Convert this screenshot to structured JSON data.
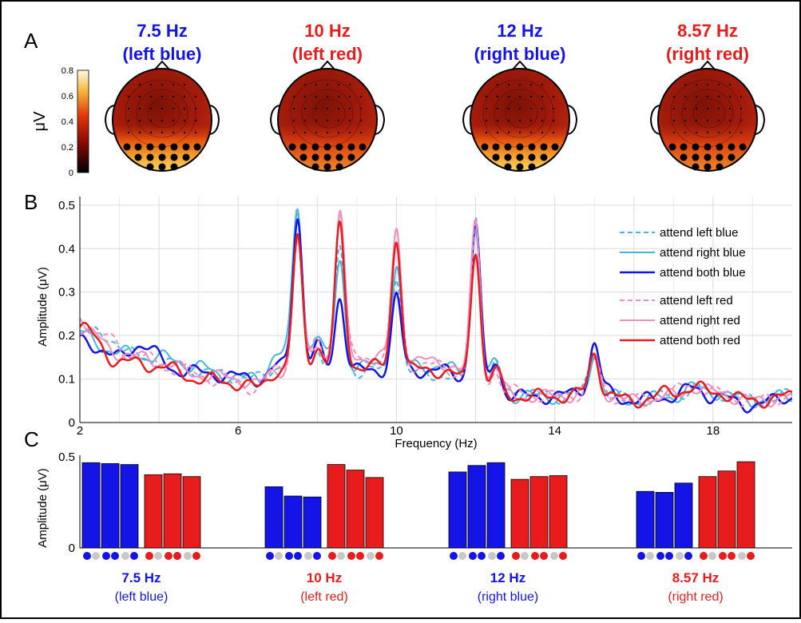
{
  "panel_letters": {
    "a": "A",
    "b": "B",
    "c": "C"
  },
  "colors": {
    "blue": "#1414e6",
    "red": "#e81c1c",
    "light_blue": "#45b5e0",
    "pink": "#f28cbf",
    "inactive_dot": "#c8c8c8",
    "frame": "#000000"
  },
  "panel_a": {
    "colorbar": {
      "label": "μV",
      "ticks": [
        "0.8",
        "0.6",
        "0.4",
        "0.2",
        "0"
      ],
      "min": 0,
      "max": 0.8
    },
    "topomaps": [
      {
        "freq": "7.5 Hz",
        "target": "(left blue)",
        "color": "blue",
        "occipital_level": "high"
      },
      {
        "freq": "10 Hz",
        "target": "(left red)",
        "color": "red",
        "occipital_level": "medium"
      },
      {
        "freq": "12 Hz",
        "target": "(right blue)",
        "color": "blue",
        "occipital_level": "high"
      },
      {
        "freq": "8.57 Hz",
        "target": "(right red)",
        "color": "red",
        "occipital_level": "medium"
      }
    ]
  },
  "chart_data": [
    {
      "type": "line",
      "panel": "B",
      "xlabel": "Frequency (Hz)",
      "ylabel": "Amplitude (μV)",
      "xlim": [
        2,
        20
      ],
      "ylim": [
        0,
        0.52
      ],
      "xticks": [
        "2",
        "6",
        "10",
        "14",
        "18"
      ],
      "xtick_values": [
        2,
        6,
        10,
        14,
        18
      ],
      "yticks": [
        "0",
        "0.1",
        "0.2",
        "0.3",
        "0.4",
        "0.5"
      ],
      "ytick_values": [
        0,
        0.1,
        0.2,
        0.3,
        0.4,
        0.5
      ],
      "grid": true,
      "legend_position": "right",
      "peak_width_hz": 0.12,
      "series": [
        {
          "name": "attend left blue",
          "color": "light_blue",
          "dash": true,
          "width": 2,
          "baseline": [
            [
              2,
              0.21
            ],
            [
              2.6,
              0.2
            ],
            [
              3.5,
              0.15
            ],
            [
              4.5,
              0.13
            ],
            [
              5.5,
              0.11
            ],
            [
              6.5,
              0.1
            ],
            [
              7,
              0.13
            ],
            [
              9,
              0.12
            ],
            [
              11,
              0.11
            ],
            [
              12.5,
              0.08
            ],
            [
              13,
              0.07
            ],
            [
              14,
              0.06
            ],
            [
              15,
              0.07
            ],
            [
              16,
              0.05
            ],
            [
              17,
              0.06
            ],
            [
              17.5,
              0.08
            ],
            [
              18,
              0.07
            ],
            [
              19,
              0.05
            ],
            [
              20,
              0.06
            ]
          ],
          "peaks": [
            [
              7.5,
              0.34
            ],
            [
              8.0,
              0.05
            ],
            [
              8.57,
              0.28
            ],
            [
              10,
              0.23
            ],
            [
              12,
              0.39
            ],
            [
              12.5,
              0.05
            ],
            [
              15,
              0.09
            ]
          ]
        },
        {
          "name": "attend right blue",
          "color": "light_blue",
          "dash": false,
          "width": 2,
          "baseline": [
            [
              2,
              0.2
            ],
            [
              3,
              0.16
            ],
            [
              4,
              0.15
            ],
            [
              5,
              0.13
            ],
            [
              5.5,
              0.11
            ],
            [
              6.5,
              0.1
            ],
            [
              7,
              0.16
            ],
            [
              9,
              0.13
            ],
            [
              11,
              0.13
            ],
            [
              12.5,
              0.08
            ],
            [
              13,
              0.06
            ],
            [
              14,
              0.06
            ],
            [
              15,
              0.07
            ],
            [
              16,
              0.05
            ],
            [
              17,
              0.06
            ],
            [
              17.5,
              0.08
            ],
            [
              18,
              0.07
            ],
            [
              19,
              0.05
            ],
            [
              20,
              0.06
            ]
          ],
          "peaks": [
            [
              7.5,
              0.34
            ],
            [
              8.0,
              0.06
            ],
            [
              8.57,
              0.24
            ],
            [
              10,
              0.23
            ],
            [
              12,
              0.36
            ],
            [
              12.5,
              0.06
            ],
            [
              15,
              0.09
            ]
          ]
        },
        {
          "name": "attend both blue",
          "color": "blue",
          "dash": false,
          "width": 2.5,
          "baseline": [
            [
              2,
              0.19
            ],
            [
              3,
              0.15
            ],
            [
              3.5,
              0.18
            ],
            [
              4.5,
              0.12
            ],
            [
              5.5,
              0.11
            ],
            [
              6.5,
              0.1
            ],
            [
              7,
              0.13
            ],
            [
              9,
              0.12
            ],
            [
              11,
              0.12
            ],
            [
              12.5,
              0.08
            ],
            [
              13,
              0.06
            ],
            [
              14,
              0.06
            ],
            [
              15,
              0.08
            ],
            [
              16,
              0.05
            ],
            [
              17,
              0.06
            ],
            [
              17.5,
              0.08
            ],
            [
              18,
              0.06
            ],
            [
              19,
              0.04
            ],
            [
              20,
              0.06
            ]
          ],
          "peaks": [
            [
              7.5,
              0.35
            ],
            [
              8.0,
              0.05
            ],
            [
              8.57,
              0.17
            ],
            [
              10,
              0.17
            ],
            [
              12,
              0.37
            ],
            [
              12.5,
              0.06
            ],
            [
              15,
              0.1
            ]
          ]
        },
        {
          "name": "attend left red",
          "color": "pink",
          "dash": true,
          "width": 2,
          "baseline": [
            [
              2,
              0.24
            ],
            [
              2.5,
              0.2
            ],
            [
              3.5,
              0.15
            ],
            [
              4.5,
              0.12
            ],
            [
              5.5,
              0.1
            ],
            [
              6.5,
              0.08
            ],
            [
              7,
              0.12
            ],
            [
              9,
              0.15
            ],
            [
              11,
              0.13
            ],
            [
              12.5,
              0.07
            ],
            [
              13,
              0.07
            ],
            [
              14,
              0.06
            ],
            [
              15,
              0.07
            ],
            [
              16,
              0.05
            ],
            [
              17,
              0.07
            ],
            [
              17.5,
              0.09
            ],
            [
              18,
              0.07
            ],
            [
              19,
              0.05
            ],
            [
              20,
              0.06
            ]
          ],
          "peaks": [
            [
              7.5,
              0.3
            ],
            [
              8.0,
              0.05
            ],
            [
              8.57,
              0.34
            ],
            [
              10,
              0.3
            ],
            [
              12,
              0.36
            ],
            [
              12.5,
              0.05
            ],
            [
              15,
              0.08
            ]
          ]
        },
        {
          "name": "attend right red",
          "color": "pink",
          "dash": false,
          "width": 2,
          "baseline": [
            [
              2,
              0.22
            ],
            [
              3,
              0.16
            ],
            [
              4,
              0.14
            ],
            [
              5,
              0.11
            ],
            [
              6,
              0.1
            ],
            [
              6.5,
              0.09
            ],
            [
              7,
              0.12
            ],
            [
              9,
              0.15
            ],
            [
              11,
              0.14
            ],
            [
              12.5,
              0.08
            ],
            [
              13,
              0.06
            ],
            [
              14,
              0.06
            ],
            [
              15,
              0.07
            ],
            [
              16,
              0.05
            ],
            [
              17,
              0.06
            ],
            [
              17.5,
              0.08
            ],
            [
              18,
              0.07
            ],
            [
              19,
              0.05
            ],
            [
              20,
              0.06
            ]
          ],
          "peaks": [
            [
              7.5,
              0.3
            ],
            [
              8.0,
              0.05
            ],
            [
              8.57,
              0.33
            ],
            [
              10,
              0.3
            ],
            [
              12,
              0.37
            ],
            [
              12.5,
              0.05
            ],
            [
              15,
              0.08
            ]
          ]
        },
        {
          "name": "attend both red",
          "color": "red",
          "dash": false,
          "width": 2.5,
          "baseline": [
            [
              2,
              0.22
            ],
            [
              3,
              0.14
            ],
            [
              4,
              0.13
            ],
            [
              5,
              0.1
            ],
            [
              6,
              0.09
            ],
            [
              6.5,
              0.08
            ],
            [
              7,
              0.12
            ],
            [
              9,
              0.13
            ],
            [
              11,
              0.12
            ],
            [
              12.5,
              0.07
            ],
            [
              13,
              0.06
            ],
            [
              14,
              0.06
            ],
            [
              15,
              0.07
            ],
            [
              16,
              0.05
            ],
            [
              17,
              0.07
            ],
            [
              17.5,
              0.08
            ],
            [
              18,
              0.07
            ],
            [
              19,
              0.05
            ],
            [
              20,
              0.06
            ]
          ],
          "peaks": [
            [
              7.5,
              0.3
            ],
            [
              8.0,
              0.05
            ],
            [
              8.57,
              0.32
            ],
            [
              10,
              0.3
            ],
            [
              12,
              0.32
            ],
            [
              12.5,
              0.05
            ],
            [
              15,
              0.09
            ]
          ]
        }
      ]
    },
    {
      "type": "bar",
      "panel": "C",
      "ylabel": "Amplitude (μV)",
      "ylim": [
        0,
        0.5
      ],
      "yticks": [
        "0",
        "0.5"
      ],
      "ytick_values": [
        0,
        0.5
      ],
      "groups": [
        {
          "freq": "7.5 Hz",
          "target": "(left blue)",
          "label_color": "blue",
          "values": [
            0.46,
            0.455,
            0.45,
            0.395,
            0.4,
            0.385
          ],
          "bar_colors": [
            "blue",
            "blue",
            "blue",
            "red",
            "red",
            "red"
          ],
          "conditions": [
            [
              "blue",
              "inactive_dot"
            ],
            [
              "blue",
              "blue"
            ],
            [
              "inactive_dot",
              "blue"
            ],
            [
              "red",
              "inactive_dot"
            ],
            [
              "red",
              "red"
            ],
            [
              "inactive_dot",
              "red"
            ]
          ]
        },
        {
          "freq": "10 Hz",
          "target": "(left red)",
          "label_color": "red",
          "values": [
            0.33,
            0.28,
            0.275,
            0.45,
            0.42,
            0.38
          ],
          "bar_colors": [
            "blue",
            "blue",
            "blue",
            "red",
            "red",
            "red"
          ],
          "conditions": [
            [
              "blue",
              "inactive_dot"
            ],
            [
              "blue",
              "blue"
            ],
            [
              "inactive_dot",
              "blue"
            ],
            [
              "red",
              "inactive_dot"
            ],
            [
              "red",
              "red"
            ],
            [
              "inactive_dot",
              "red"
            ]
          ]
        },
        {
          "freq": "12 Hz",
          "target": "(right blue)",
          "label_color": "blue",
          "values": [
            0.41,
            0.445,
            0.46,
            0.37,
            0.385,
            0.39
          ],
          "bar_colors": [
            "blue",
            "blue",
            "blue",
            "red",
            "red",
            "red"
          ],
          "conditions": [
            [
              "blue",
              "inactive_dot"
            ],
            [
              "blue",
              "blue"
            ],
            [
              "inactive_dot",
              "blue"
            ],
            [
              "red",
              "inactive_dot"
            ],
            [
              "red",
              "red"
            ],
            [
              "inactive_dot",
              "red"
            ]
          ]
        },
        {
          "freq": "8.57 Hz",
          "target": "(right red)",
          "label_color": "red",
          "values": [
            0.305,
            0.3,
            0.35,
            0.385,
            0.415,
            0.465
          ],
          "bar_colors": [
            "blue",
            "blue",
            "blue",
            "red",
            "red",
            "red"
          ],
          "conditions": [
            [
              "blue",
              "inactive_dot"
            ],
            [
              "blue",
              "blue"
            ],
            [
              "inactive_dot",
              "blue"
            ],
            [
              "red",
              "inactive_dot"
            ],
            [
              "red",
              "red"
            ],
            [
              "inactive_dot",
              "red"
            ]
          ]
        }
      ]
    }
  ]
}
